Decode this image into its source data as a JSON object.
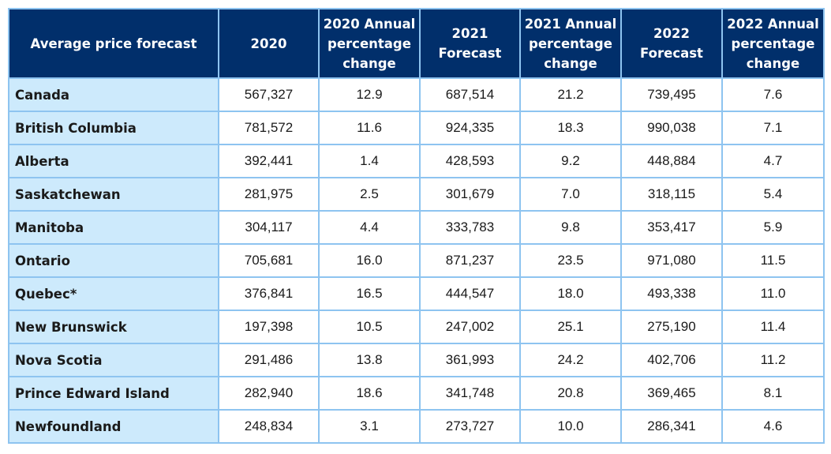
{
  "chart_data": {
    "type": "table",
    "columns": [
      "Average price forecast",
      "2020",
      "2020 Annual percentage change",
      "2021 Forecast",
      "2021 Annual percentage change",
      "2022 Forecast",
      "2022 Annual percentage change"
    ],
    "header_lines": [
      [
        "Average price forecast"
      ],
      [
        "2020"
      ],
      [
        "2020 Annual",
        "percentage",
        "change"
      ],
      [
        "2021 Forecast"
      ],
      [
        "2021 Annual",
        "percentage",
        "change"
      ],
      [
        "2022 Forecast"
      ],
      [
        "2022 Annual",
        "percentage",
        "change"
      ]
    ],
    "rows": [
      [
        "Canada",
        "567,327",
        "12.9",
        "687,514",
        "21.2",
        "739,495",
        "7.6"
      ],
      [
        "British Columbia",
        "781,572",
        "11.6",
        "924,335",
        "18.3",
        "990,038",
        "7.1"
      ],
      [
        "Alberta",
        "392,441",
        "1.4",
        "428,593",
        "9.2",
        "448,884",
        "4.7"
      ],
      [
        "Saskatchewan",
        "281,975",
        "2.5",
        "301,679",
        "7.0",
        "318,115",
        "5.4"
      ],
      [
        "Manitoba",
        "304,117",
        "4.4",
        "333,783",
        "9.8",
        "353,417",
        "5.9"
      ],
      [
        "Ontario",
        "705,681",
        "16.0",
        "871,237",
        "23.5",
        "971,080",
        "11.5"
      ],
      [
        "Quebec*",
        "376,841",
        "16.5",
        "444,547",
        "18.0",
        "493,338",
        "11.0"
      ],
      [
        "New Brunswick",
        "197,398",
        "10.5",
        "247,002",
        "25.1",
        "275,190",
        "11.4"
      ],
      [
        "Nova Scotia",
        "291,486",
        "13.8",
        "361,993",
        "24.2",
        "402,706",
        "11.2"
      ],
      [
        "Prince Edward Island",
        "282,940",
        "18.6",
        "341,748",
        "20.8",
        "369,465",
        "8.1"
      ],
      [
        "Newfoundland",
        "248,834",
        "3.1",
        "273,727",
        "10.0",
        "286,341",
        "4.6"
      ]
    ]
  },
  "colors": {
    "header_bg": "#012f6b",
    "header_text": "#ffffff",
    "first_column_bg": "#cdeafc",
    "cell_bg": "#ffffff",
    "border": "#8ec4f0"
  }
}
